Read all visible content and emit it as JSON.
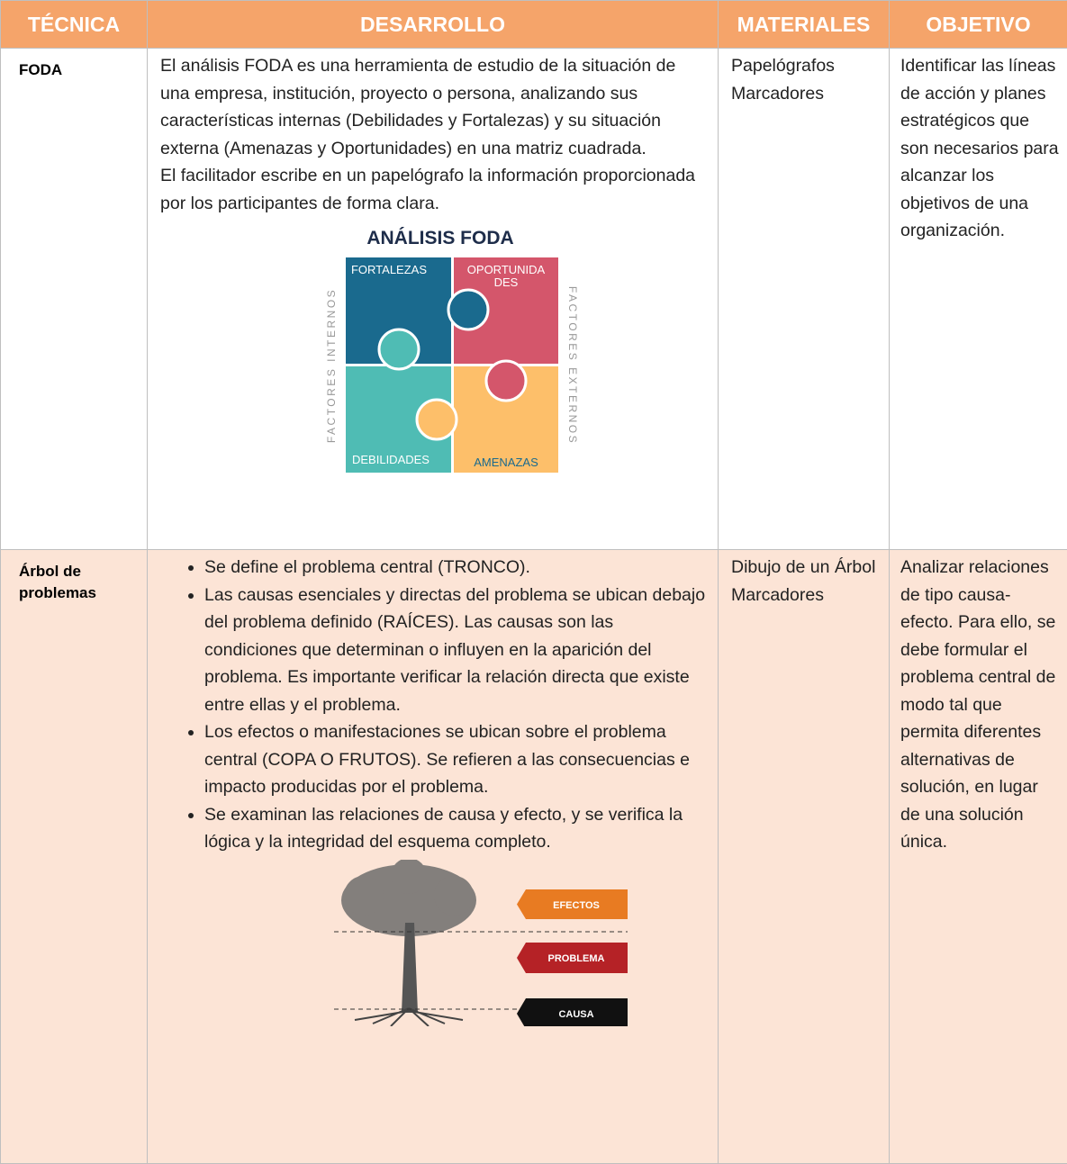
{
  "table": {
    "header": [
      "TÉCNICA",
      "DESARROLLO",
      "MATERIALES",
      "OBJETIVO"
    ],
    "rows": [
      {
        "tecnica": "FODA",
        "desarrollo": [
          "El análisis FODA es una herramienta de estudio de la situación de una empresa, institución, proyecto o persona, analizando sus características internas (Debilidades y Fortalezas) y su situación externa (Amenazas y Oportunidades) en una matriz cuadrada.",
          "El facilitador escribe en un papelógrafo la información proporcionada por los participantes de forma clara."
        ],
        "figure": {
          "title": "ANÁLISIS FODA",
          "fortalezas": "FORTALEZAS",
          "oportunidades": [
            "OPORTUNIDA",
            "DES"
          ],
          "debilidades": "DEBILIDADES",
          "amenazas": "AMENAZAS",
          "internos": "FACTORES INTERNOS",
          "externos": "FACTORES EXTERNOS"
        },
        "materiales": [
          "Papelógrafos",
          "Marcadores"
        ],
        "objetivo": "Identificar las líneas de acción y planes estratégicos que son necesarios para alcanzar los objetivos de una organización."
      },
      {
        "tecnica": "Árbol de problemas",
        "desarrollo": [
          "Se define el problema central (TRONCO).",
          "Las causas esenciales y directas del problema se ubican debajo del problema definido (RAÍCES). Las causas son las condiciones que determinan o influyen en la aparición del problema. Es importante verificar la relación directa que existe entre ellas y el problema.",
          "Los efectos o manifestaciones se ubican sobre el problema central (COPA O FRUTOS). Se refieren a las consecuencias e impacto producidas por el problema.",
          "Se examinan las relaciones de causa y efecto, y se verifica la lógica y la integridad del esquema completo."
        ],
        "figure": {
          "efectos": "EFECTOS",
          "problema": "PROBLEMA",
          "causa": "CAUSA"
        },
        "materiales": [
          "Dibujo de un Árbol",
          "Marcadores"
        ],
        "objetivo": "Analizar relaciones de tipo causa-efecto. Para ello, se debe formular el problema central de modo tal que permita diferentes alternativas de solución, en lugar de una solución única."
      }
    ]
  }
}
